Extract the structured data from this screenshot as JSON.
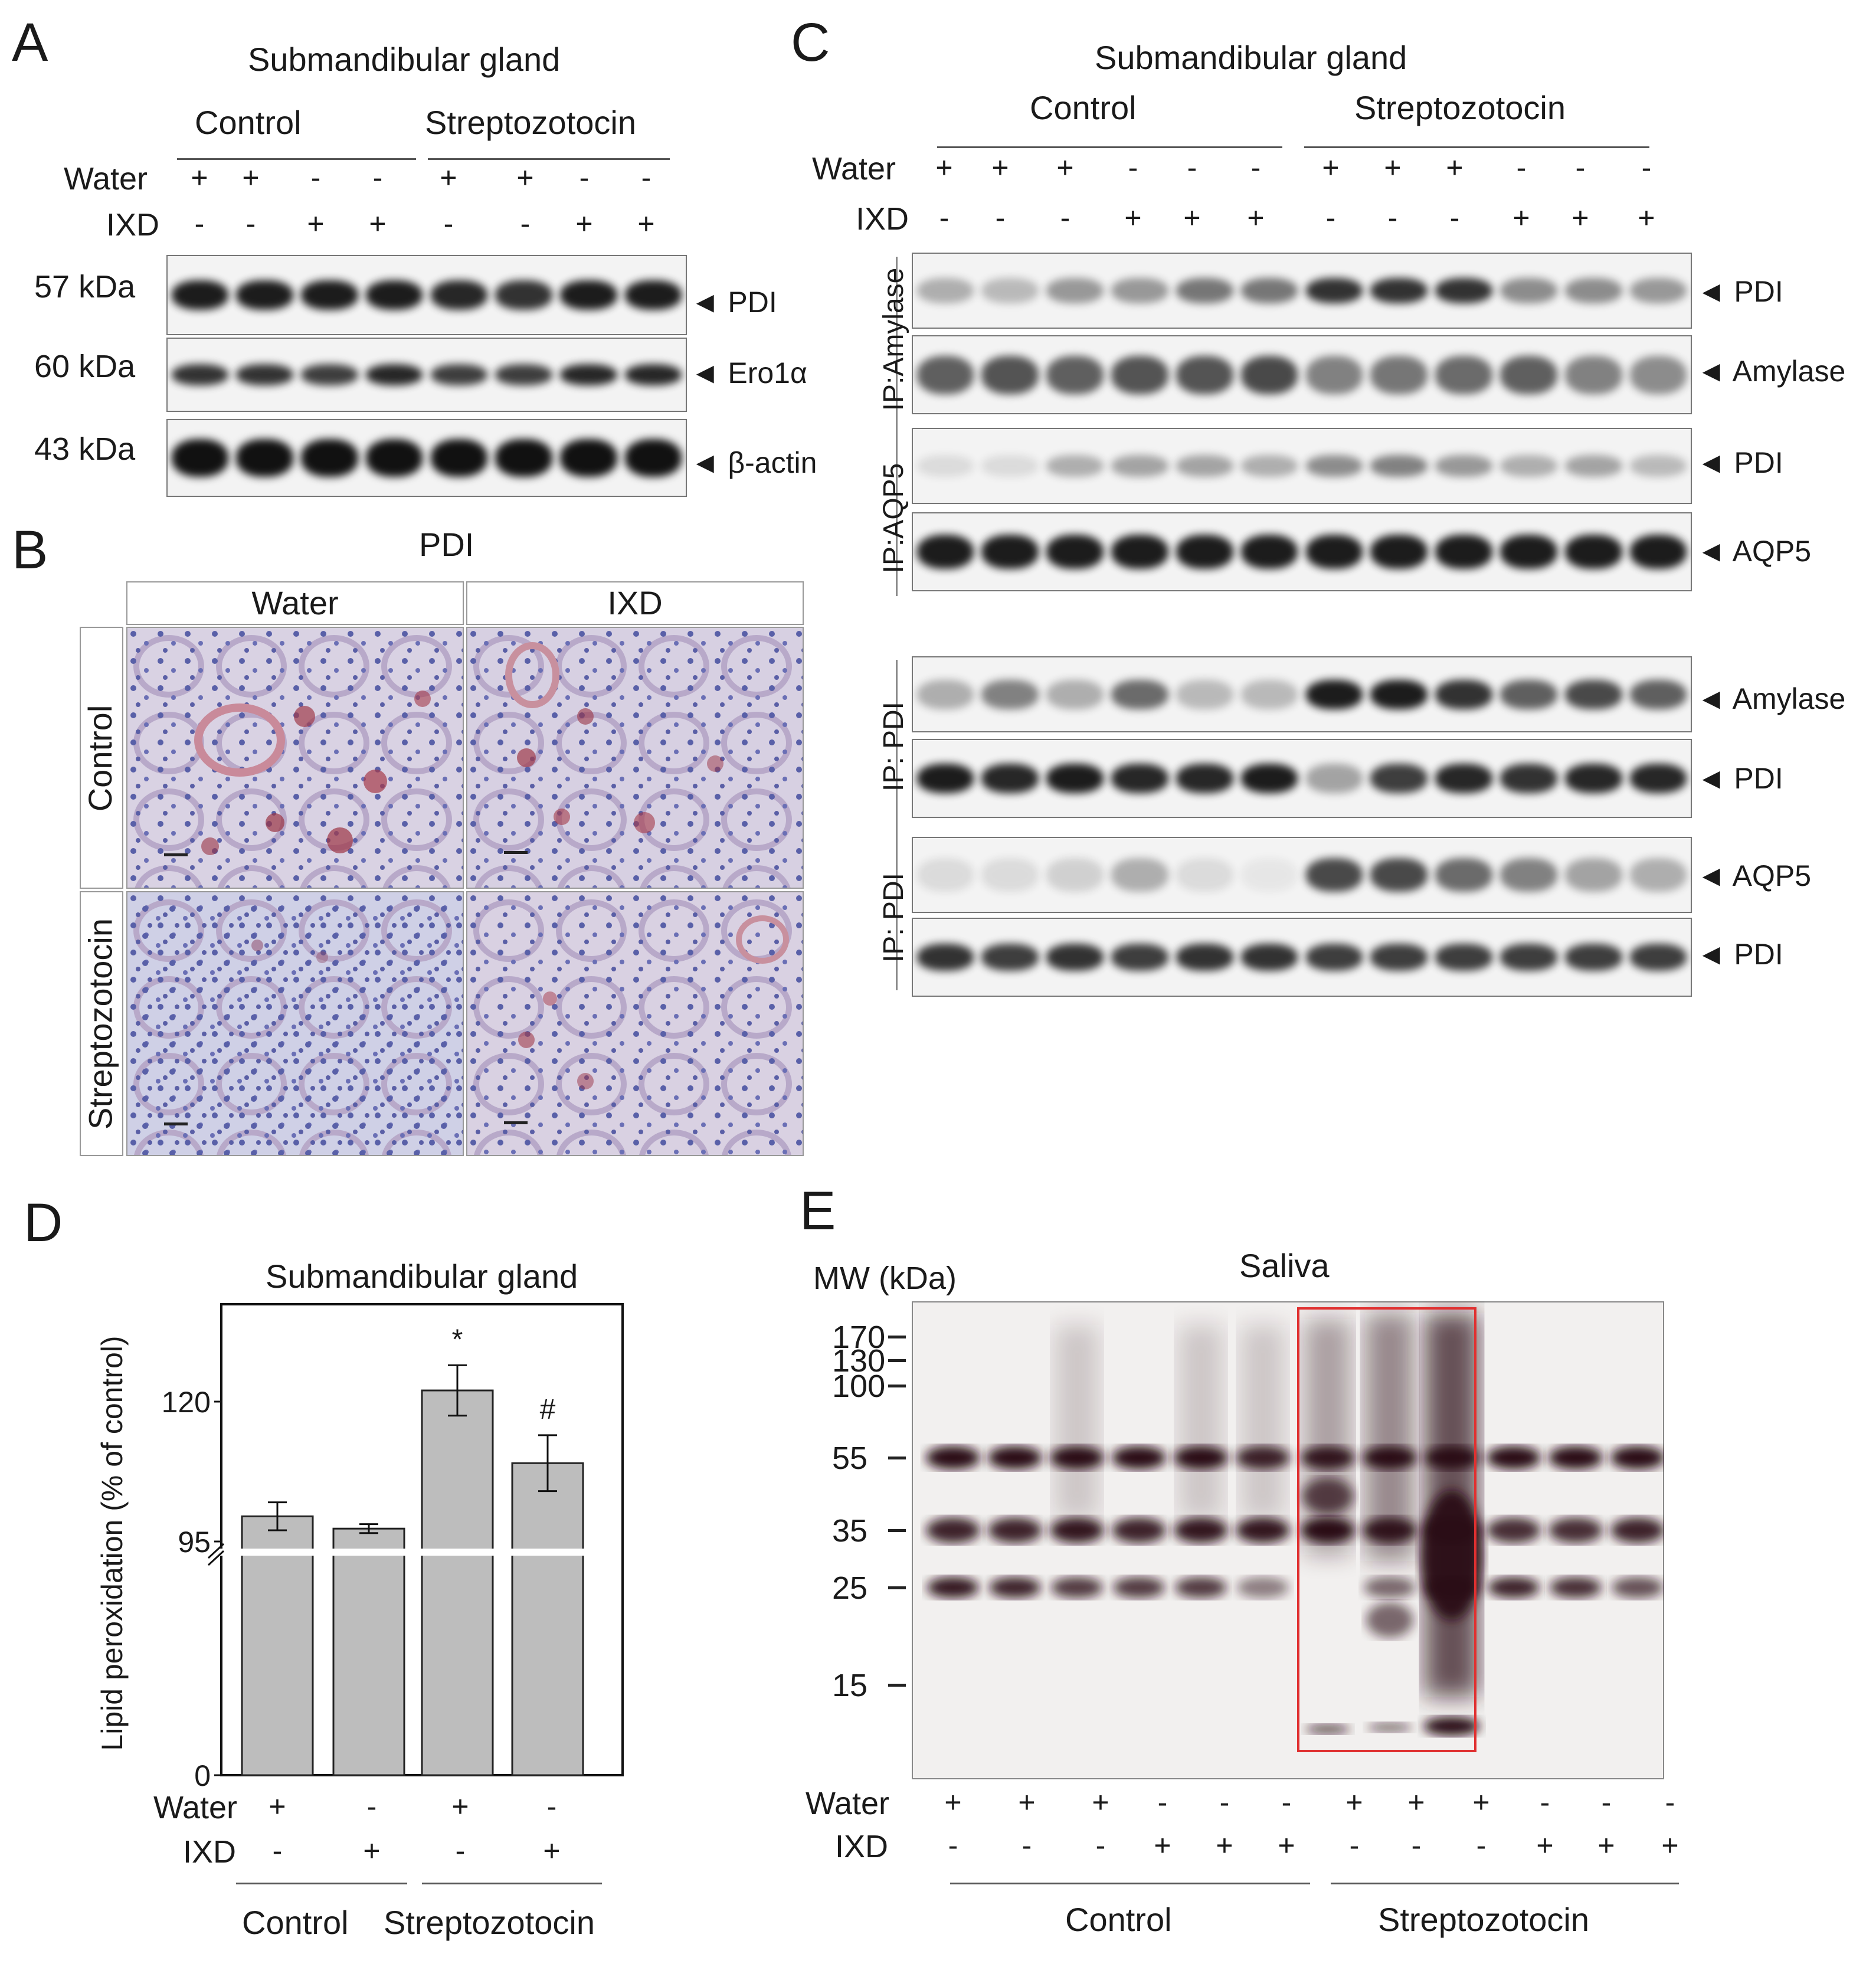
{
  "panels": {
    "a": "A",
    "b": "B",
    "c": "C",
    "d": "D",
    "e": "E"
  },
  "panelA": {
    "title": "Submandibular gland",
    "group_control": "Control",
    "group_stz": "Streptozotocin",
    "water_label": "Water",
    "ixd_label": "IXD",
    "water_signs": [
      "+",
      "+",
      "-",
      "-",
      "+",
      "+",
      "-",
      "-"
    ],
    "ixd_signs": [
      "-",
      "-",
      "+",
      "+",
      "-",
      "-",
      "+",
      "+"
    ],
    "blots": [
      {
        "mw": "57 kDa",
        "label": "◄ PDI"
      },
      {
        "mw": "60 kDa",
        "label": "◄ Ero1α"
      },
      {
        "mw": "43 kDa",
        "label": "◄ β-actin"
      }
    ]
  },
  "panelB": {
    "title": "PDI",
    "col_water": "Water",
    "col_ixd": "IXD",
    "row_control": "Control",
    "row_stz": "Streptozotocin"
  },
  "panelC": {
    "title": "Submandibular gland",
    "group_control": "Control",
    "group_stz": "Streptozotocin",
    "water_label": "Water",
    "ixd_label": "IXD",
    "water_signs": [
      "+",
      "+",
      "+",
      "-",
      "-",
      "-",
      "+",
      "+",
      "+",
      "-",
      "-",
      "-"
    ],
    "ixd_signs": [
      "-",
      "-",
      "-",
      "+",
      "+",
      "+",
      "-",
      "-",
      "-",
      "+",
      "+",
      "+"
    ],
    "ip_groups": [
      "IP:Amylase",
      "IP:AQP5",
      "IP: PDI",
      "IP: PDI"
    ],
    "blot_labels": [
      "◄ PDI",
      "◄ Amylase",
      "◄ PDI",
      "◄ AQP5",
      "◄ Amylase",
      "◄ PDI",
      "◄ AQP5",
      "◄ PDI"
    ]
  },
  "panelD": {
    "chart_data": {
      "type": "bar",
      "title": "Submandibular gland",
      "ylabel": "Lipid peroxidation (% of control)",
      "yticks": [
        "0",
        "95",
        "120"
      ],
      "axis_break": true,
      "categories": [
        "Control / Water",
        "Control / IXD",
        "Streptozotocin / Water",
        "Streptozotocin / IXD"
      ],
      "values": [
        99.5,
        97.3,
        122,
        109
      ],
      "errors": [
        2.5,
        0.8,
        4.5,
        5.0
      ],
      "annotations": [
        "",
        "",
        "*",
        "#"
      ],
      "water_label": "Water",
      "ixd_label": "IXD",
      "water_signs": [
        "+",
        "-",
        "+",
        "-"
      ],
      "ixd_signs": [
        "-",
        "+",
        "-",
        "+"
      ],
      "group_control": "Control",
      "group_stz": "Streptozotocin"
    }
  },
  "panelE": {
    "title": "Saliva",
    "mw_title": "MW (kDa)",
    "mw_markers": [
      "170",
      "130",
      "100",
      "55",
      "35",
      "25",
      "15"
    ],
    "water_label": "Water",
    "ixd_label": "IXD",
    "water_signs": [
      "+",
      "+",
      "+",
      "-",
      "-",
      "-",
      "+",
      "+",
      "+",
      "-",
      "-",
      "-"
    ],
    "ixd_signs": [
      "-",
      "-",
      "-",
      "+",
      "+",
      "+",
      "-",
      "-",
      "-",
      "+",
      "+",
      "+"
    ],
    "group_control": "Control",
    "group_stz": "Streptozotocin",
    "highlight_color": "#e03030"
  }
}
